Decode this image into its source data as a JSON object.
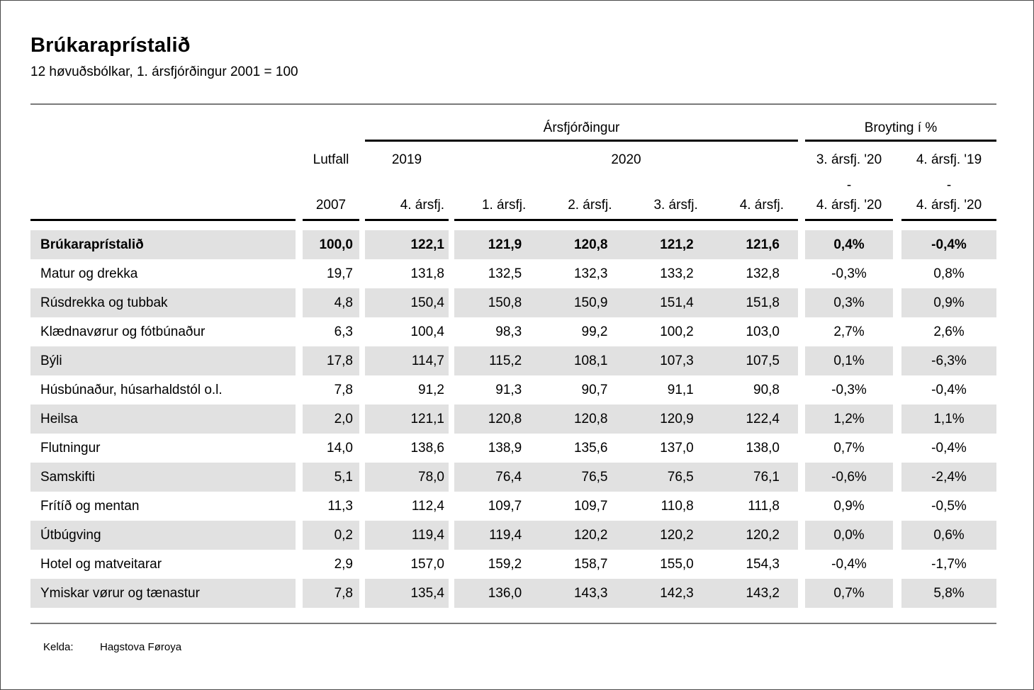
{
  "header": {
    "title": "Brúkaraprístalið",
    "subtitle": "12 høvuðsbólkar, 1. ársfjórðingur 2001 = 100"
  },
  "table": {
    "col_groups": {
      "quarter_span": "Ársfjórðingur",
      "change_span": "Broyting í %",
      "lutfall_line1": "Lutfall",
      "lutfall_line2": "2007",
      "year_2019": "2019",
      "year_2020": "2020",
      "q2019": "4. ársfj.",
      "q2020": [
        "1. ársfj.",
        "2. ársfj.",
        "3. ársfj.",
        "4. ársfj."
      ],
      "change1": [
        "3. ársfj. '20",
        "-",
        "4. ársfj. '20"
      ],
      "change2": [
        "4. ársfj. '19",
        "-",
        "4. ársfj. '20"
      ]
    },
    "rows": [
      {
        "label": "Brúkaraprístalið",
        "bold": true,
        "striped": true,
        "lutfall": "100,0",
        "q2019": "122,1",
        "q2020": [
          "121,9",
          "120,8",
          "121,2",
          "121,6"
        ],
        "change_qoq": "0,4%",
        "change_yoy": "-0,4%"
      },
      {
        "label": "Matur og drekka",
        "bold": false,
        "striped": false,
        "lutfall": "19,7",
        "q2019": "131,8",
        "q2020": [
          "132,5",
          "132,3",
          "133,2",
          "132,8"
        ],
        "change_qoq": "-0,3%",
        "change_yoy": "0,8%"
      },
      {
        "label": "Rúsdrekka og tubbak",
        "bold": false,
        "striped": true,
        "lutfall": "4,8",
        "q2019": "150,4",
        "q2020": [
          "150,8",
          "150,9",
          "151,4",
          "151,8"
        ],
        "change_qoq": "0,3%",
        "change_yoy": "0,9%"
      },
      {
        "label": "Klædnavørur og fótbúnaður",
        "bold": false,
        "striped": false,
        "lutfall": "6,3",
        "q2019": "100,4",
        "q2020": [
          "98,3",
          "99,2",
          "100,2",
          "103,0"
        ],
        "change_qoq": "2,7%",
        "change_yoy": "2,6%"
      },
      {
        "label": "Býli",
        "bold": false,
        "striped": true,
        "lutfall": "17,8",
        "q2019": "114,7",
        "q2020": [
          "115,2",
          "108,1",
          "107,3",
          "107,5"
        ],
        "change_qoq": "0,1%",
        "change_yoy": "-6,3%"
      },
      {
        "label": "Húsbúnaður, húsarhaldstól o.l.",
        "bold": false,
        "striped": false,
        "lutfall": "7,8",
        "q2019": "91,2",
        "q2020": [
          "91,3",
          "90,7",
          "91,1",
          "90,8"
        ],
        "change_qoq": "-0,3%",
        "change_yoy": "-0,4%"
      },
      {
        "label": "Heilsa",
        "bold": false,
        "striped": true,
        "lutfall": "2,0",
        "q2019": "121,1",
        "q2020": [
          "120,8",
          "120,8",
          "120,9",
          "122,4"
        ],
        "change_qoq": "1,2%",
        "change_yoy": "1,1%"
      },
      {
        "label": "Flutningur",
        "bold": false,
        "striped": false,
        "lutfall": "14,0",
        "q2019": "138,6",
        "q2020": [
          "138,9",
          "135,6",
          "137,0",
          "138,0"
        ],
        "change_qoq": "0,7%",
        "change_yoy": "-0,4%"
      },
      {
        "label": "Samskifti",
        "bold": false,
        "striped": true,
        "lutfall": "5,1",
        "q2019": "78,0",
        "q2020": [
          "76,4",
          "76,5",
          "76,5",
          "76,1"
        ],
        "change_qoq": "-0,6%",
        "change_yoy": "-2,4%"
      },
      {
        "label": "Frítíð og mentan",
        "bold": false,
        "striped": false,
        "lutfall": "11,3",
        "q2019": "112,4",
        "q2020": [
          "109,7",
          "109,7",
          "110,8",
          "111,8"
        ],
        "change_qoq": "0,9%",
        "change_yoy": "-0,5%"
      },
      {
        "label": "Útbúgving",
        "bold": false,
        "striped": true,
        "lutfall": "0,2",
        "q2019": "119,4",
        "q2020": [
          "119,4",
          "120,2",
          "120,2",
          "120,2"
        ],
        "change_qoq": "0,0%",
        "change_yoy": "0,6%"
      },
      {
        "label": "Hotel og matveitarar",
        "bold": false,
        "striped": false,
        "lutfall": "2,9",
        "q2019": "157,0",
        "q2020": [
          "159,2",
          "158,7",
          "155,0",
          "154,3"
        ],
        "change_qoq": "-0,4%",
        "change_yoy": "-1,7%"
      },
      {
        "label": "Ymiskar vørur og tænastur",
        "bold": false,
        "striped": true,
        "lutfall": "7,8",
        "q2019": "135,4",
        "q2020": [
          "136,0",
          "143,3",
          "142,3",
          "143,2"
        ],
        "change_qoq": "0,7%",
        "change_yoy": "5,8%"
      }
    ]
  },
  "footer": {
    "source_label": "Kelda:",
    "source_value": "Hagstova Føroya"
  }
}
